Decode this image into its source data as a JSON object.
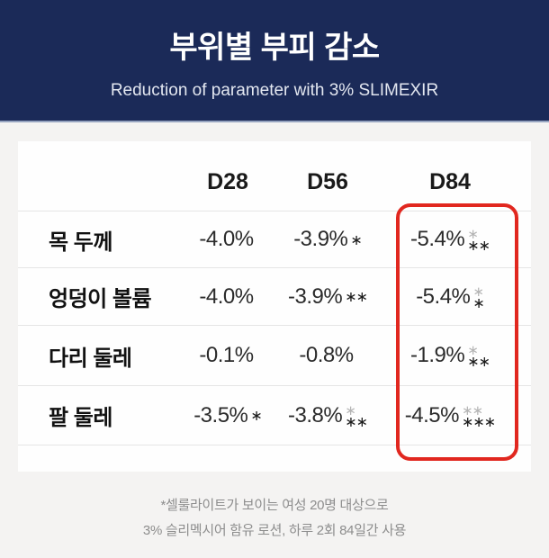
{
  "header": {
    "title": "부위별 부피 감소",
    "subtitle": "Reduction of parameter with 3% SLIMEXIR"
  },
  "table": {
    "columns": [
      "D28",
      "D56",
      "D84"
    ],
    "rows": [
      {
        "label": "목 두께",
        "cells": [
          {
            "value": "-4.0%",
            "stars_top": "",
            "stars_bottom": ""
          },
          {
            "value": "-3.9%",
            "stars_top": "",
            "stars_bottom": "∗"
          },
          {
            "value": "-5.4%",
            "stars_top": "∗",
            "stars_bottom": "∗∗"
          }
        ]
      },
      {
        "label": "엉덩이 볼륨",
        "cells": [
          {
            "value": "-4.0%",
            "stars_top": "",
            "stars_bottom": ""
          },
          {
            "value": "-3.9%",
            "stars_top": "",
            "stars_bottom": "∗∗"
          },
          {
            "value": "-5.4%",
            "stars_top": "∗",
            "stars_bottom": "∗"
          }
        ]
      },
      {
        "label": "다리 둘레",
        "cells": [
          {
            "value": "-0.1%",
            "stars_top": "",
            "stars_bottom": ""
          },
          {
            "value": "-0.8%",
            "stars_top": "",
            "stars_bottom": ""
          },
          {
            "value": "-1.9%",
            "stars_top": "∗",
            "stars_bottom": "∗∗"
          }
        ]
      },
      {
        "label": "팔 둘레",
        "cells": [
          {
            "value": "-3.5%",
            "stars_top": "",
            "stars_bottom": "∗"
          },
          {
            "value": "-3.8%",
            "stars_top": "∗",
            "stars_bottom": "∗∗"
          },
          {
            "value": "-4.5%",
            "stars_top": "∗∗",
            "stars_bottom": "∗∗∗"
          }
        ]
      }
    ],
    "highlighted_column": "D84"
  },
  "footnote": {
    "line1": "*셀룰라이트가 보이는 여성 20명 대상으로",
    "line2": "3% 슬리멕시어 함유 로션, 하루 2회 84일간 사용"
  },
  "colors": {
    "header_navy": "#1b2a58",
    "highlight_red": "#e1271f",
    "significance_gray": "#b4b4b4",
    "page_background": "#f4f3f2",
    "card_background": "#fefefe"
  },
  "chart_data": {
    "type": "table",
    "title": "부위별 부피 감소",
    "subtitle": "Reduction of parameter with 3% SLIMEXIR",
    "columns": [
      "D28",
      "D56",
      "D84"
    ],
    "rows": [
      {
        "label": "목 두께",
        "values_pct": [
          -4.0,
          -3.9,
          -5.4
        ],
        "significance": [
          "",
          "*",
          "* / **"
        ]
      },
      {
        "label": "엉덩이 볼륨",
        "values_pct": [
          -4.0,
          -3.9,
          -5.4
        ],
        "significance": [
          "",
          "**",
          "* / *"
        ]
      },
      {
        "label": "다리 둘레",
        "values_pct": [
          -0.1,
          -0.8,
          -1.9
        ],
        "significance": [
          "",
          "",
          "* / **"
        ]
      },
      {
        "label": "팔 둘레",
        "values_pct": [
          -3.5,
          -3.8,
          -4.5
        ],
        "significance": [
          "*",
          "* / **",
          "** / ***"
        ]
      }
    ],
    "highlighted_column": "D84",
    "footnote": "*셀룰라이트가 보이는 여성 20명 대상으로 3% 슬리멕시어 함유 로션, 하루 2회 84일간 사용"
  }
}
